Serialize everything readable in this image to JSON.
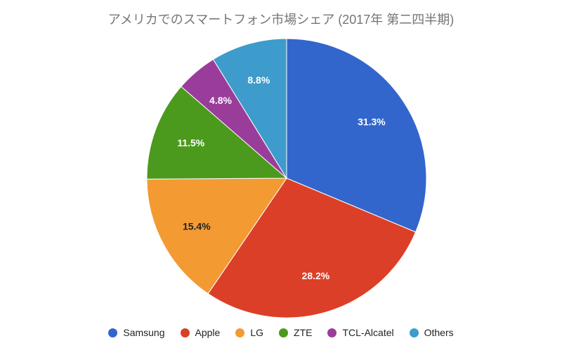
{
  "chart_data": {
    "type": "pie",
    "title": "アメリカでのスマートフォン市場シェア (2017年 第二四半期)",
    "categories": [
      "Samsung",
      "Apple",
      "LG",
      "ZTE",
      "TCL-Alcatel",
      "Others"
    ],
    "values": [
      31.3,
      28.2,
      15.4,
      11.5,
      4.8,
      8.8
    ],
    "data_labels": [
      "31.3%",
      "28.2%",
      "15.4%",
      "11.5%",
      "4.8%",
      "8.8%"
    ],
    "colors": [
      "#3366cc",
      "#dc3f27",
      "#f39a33",
      "#4b9a1d",
      "#9a3d9a",
      "#3d9ccb"
    ],
    "start_angle": "12 o'clock, clockwise",
    "legend_position": "bottom"
  }
}
